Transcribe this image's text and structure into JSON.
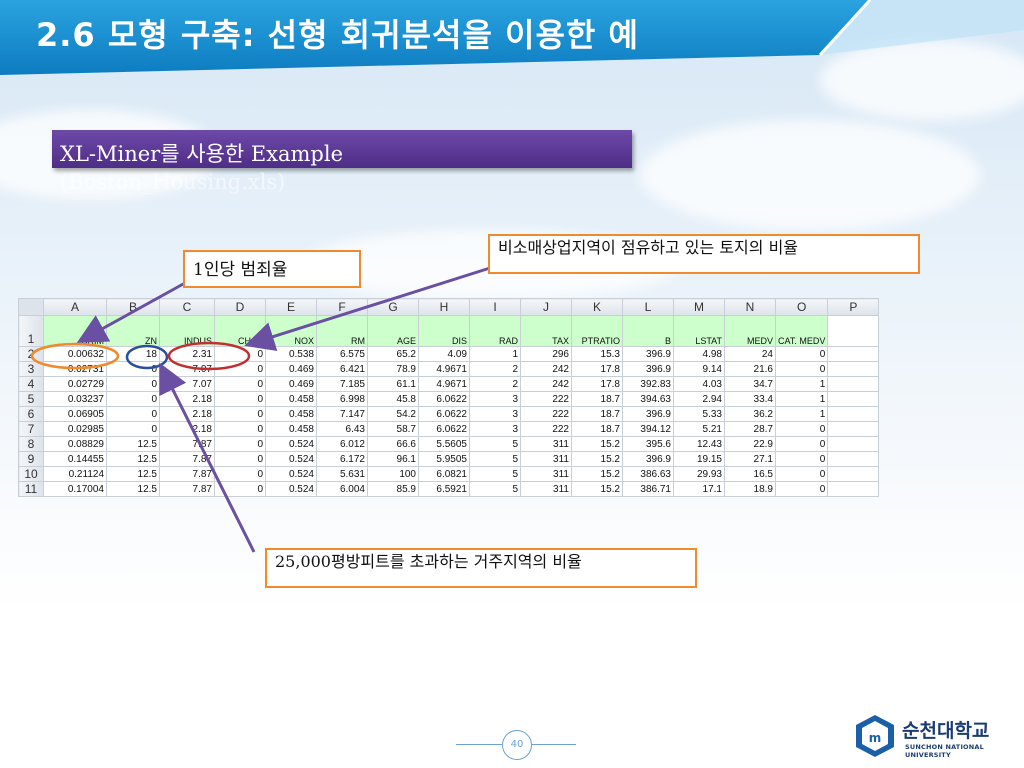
{
  "slide": {
    "title": "2.6 모형 구축: 선형 회귀분석을 이용한 예",
    "subtitle_line1": "XL-Miner를 사용한 Example",
    "subtitle_line2": "(Boston_Housing.xls)",
    "page_number": "40"
  },
  "callouts": {
    "crime": "1인당 범죄율",
    "indus": "비소매상업지역이 점유하고 있는 토지의 비율",
    "zn": "25,000평방피트를 초과하는 거주지역의 비율"
  },
  "sheet": {
    "columns": [
      "A",
      "B",
      "C",
      "D",
      "E",
      "F",
      "G",
      "H",
      "I",
      "J",
      "K",
      "L",
      "M",
      "N",
      "O",
      "P"
    ],
    "header_row_number": "1",
    "headers": [
      "CRIM",
      "ZN",
      "INDUS",
      "CHAS",
      "NOX",
      "RM",
      "AGE",
      "DIS",
      "RAD",
      "TAX",
      "PTRATIO",
      "B",
      "LSTAT",
      "MEDV",
      "CAT. MEDV",
      ""
    ],
    "rows": [
      {
        "n": "2",
        "cells": [
          "0.00632",
          "18",
          "2.31",
          "0",
          "0.538",
          "6.575",
          "65.2",
          "4.09",
          "1",
          "296",
          "15.3",
          "396.9",
          "4.98",
          "24",
          "0",
          ""
        ]
      },
      {
        "n": "3",
        "cells": [
          "0.02731",
          "0",
          "7.07",
          "0",
          "0.469",
          "6.421",
          "78.9",
          "4.9671",
          "2",
          "242",
          "17.8",
          "396.9",
          "9.14",
          "21.6",
          "0",
          ""
        ]
      },
      {
        "n": "4",
        "cells": [
          "0.02729",
          "0",
          "7.07",
          "0",
          "0.469",
          "7.185",
          "61.1",
          "4.9671",
          "2",
          "242",
          "17.8",
          "392.83",
          "4.03",
          "34.7",
          "1",
          ""
        ]
      },
      {
        "n": "5",
        "cells": [
          "0.03237",
          "0",
          "2.18",
          "0",
          "0.458",
          "6.998",
          "45.8",
          "6.0622",
          "3",
          "222",
          "18.7",
          "394.63",
          "2.94",
          "33.4",
          "1",
          ""
        ]
      },
      {
        "n": "6",
        "cells": [
          "0.06905",
          "0",
          "2.18",
          "0",
          "0.458",
          "7.147",
          "54.2",
          "6.0622",
          "3",
          "222",
          "18.7",
          "396.9",
          "5.33",
          "36.2",
          "1",
          ""
        ]
      },
      {
        "n": "7",
        "cells": [
          "0.02985",
          "0",
          "2.18",
          "0",
          "0.458",
          "6.43",
          "58.7",
          "6.0622",
          "3",
          "222",
          "18.7",
          "394.12",
          "5.21",
          "28.7",
          "0",
          ""
        ]
      },
      {
        "n": "8",
        "cells": [
          "0.08829",
          "12.5",
          "7.87",
          "0",
          "0.524",
          "6.012",
          "66.6",
          "5.5605",
          "5",
          "311",
          "15.2",
          "395.6",
          "12.43",
          "22.9",
          "0",
          ""
        ]
      },
      {
        "n": "9",
        "cells": [
          "0.14455",
          "12.5",
          "7.87",
          "0",
          "0.524",
          "6.172",
          "96.1",
          "5.9505",
          "5",
          "311",
          "15.2",
          "396.9",
          "19.15",
          "27.1",
          "0",
          ""
        ]
      },
      {
        "n": "10",
        "cells": [
          "0.21124",
          "12.5",
          "7.87",
          "0",
          "0.524",
          "5.631",
          "100",
          "6.0821",
          "5",
          "311",
          "15.2",
          "386.63",
          "29.93",
          "16.5",
          "0",
          ""
        ]
      },
      {
        "n": "11",
        "cells": [
          "0.17004",
          "12.5",
          "7.87",
          "0",
          "0.524",
          "6.004",
          "85.9",
          "6.5921",
          "5",
          "311",
          "15.2",
          "386.71",
          "17.1",
          "18.9",
          "0",
          ""
        ]
      }
    ]
  },
  "logo": {
    "name": "순천대학교",
    "english": "SUNCHON NATIONAL UNIVERSITY"
  },
  "colors": {
    "title_bar": "#1a8fd0",
    "subtitle_box": "#5b3a96",
    "callout_border": "#f08a2c",
    "header_fill": "#ccffcc",
    "arrow": "#6a4fa3",
    "logo": "#1b3c73"
  }
}
